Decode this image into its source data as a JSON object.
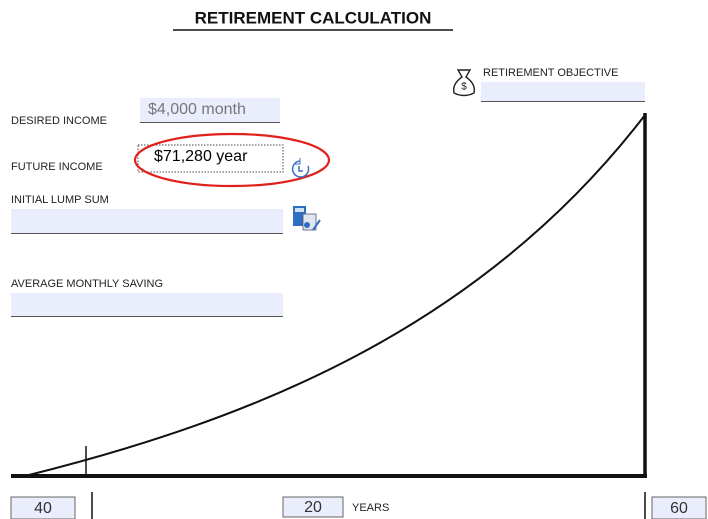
{
  "header": {
    "title": "RETIREMENT CALCULATION"
  },
  "retirement_objective": {
    "label": "RETIREMENT OBJECTIVE"
  },
  "fields": {
    "desired_income": {
      "label": "DESIRED INCOME",
      "value": "$4,000 month"
    },
    "future_income": {
      "label": "FUTURE INCOME",
      "value": "$71,280 year"
    },
    "initial_lump_sum": {
      "label": "INITIAL LUMP SUM"
    },
    "average_monthly_saving": {
      "label": "AVERAGE MONTHLY SAVING"
    }
  },
  "timeline": {
    "start": 40,
    "middle": 20,
    "middle_label": "YEARS",
    "end": 60
  }
}
